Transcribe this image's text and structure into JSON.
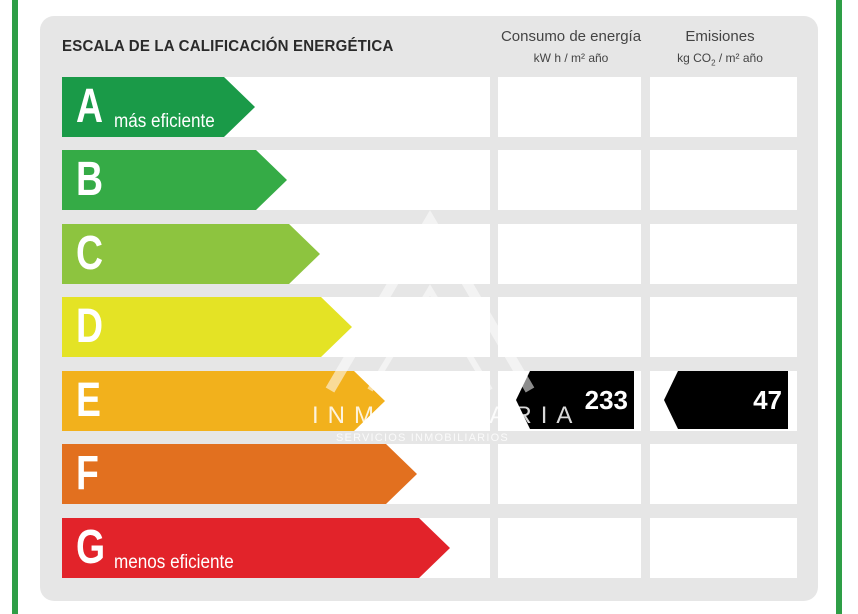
{
  "title": "ESCALA DE LA CALIFICACIÓN ENERGÉTICA",
  "columns": {
    "consumption": {
      "title": "Consumo de energía",
      "unit": "kW h / m² año"
    },
    "emissions": {
      "title": "Emisiones",
      "unit_prefix": "kg CO",
      "unit_sub": "2",
      "unit_suffix": " / m² año"
    }
  },
  "ratings": [
    {
      "letter": "A",
      "label": "más eficiente",
      "color": "#1a9a48"
    },
    {
      "letter": "B",
      "label": "",
      "color": "#35ab46"
    },
    {
      "letter": "C",
      "label": "",
      "color": "#8dc43f"
    },
    {
      "letter": "D",
      "label": "",
      "color": "#e4e325"
    },
    {
      "letter": "E",
      "label": "",
      "color": "#f2b11c"
    },
    {
      "letter": "F",
      "label": "",
      "color": "#e2701f"
    },
    {
      "letter": "G",
      "label": "menos eficiente",
      "color": "#e2232a"
    }
  ],
  "current": {
    "rating": "E",
    "consumption": "233",
    "emissions": "47"
  },
  "watermark": {
    "name": "INMOBILIARIA",
    "tagline": "SERVICIOS INMOBILIARIOS"
  },
  "colors": {
    "frame": "#2e9e46",
    "panel": "#e6e6e6",
    "tag": "#000000"
  }
}
